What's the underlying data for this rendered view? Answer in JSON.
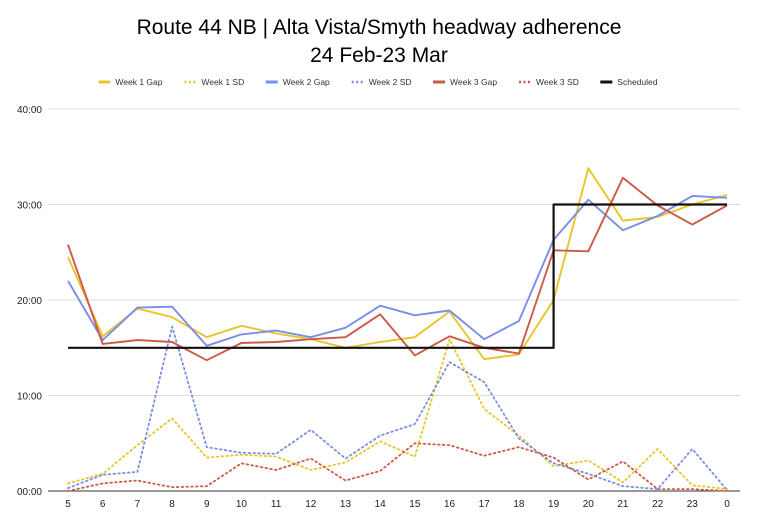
{
  "chart_data": {
    "type": "line",
    "title": "Route 44 NB | Alta Vista/Smyth headway adherence",
    "subtitle": "24 Feb-23 Mar",
    "legend_position": "top",
    "grid": true,
    "categories": [
      "5",
      "6",
      "7",
      "8",
      "9",
      "10",
      "11",
      "12",
      "13",
      "14",
      "15",
      "16",
      "17",
      "18",
      "19",
      "20",
      "21",
      "22",
      "23",
      "0"
    ],
    "y_ticks": [
      "00:00",
      "10:00",
      "20:00",
      "30:00",
      "40:00"
    ],
    "ylim": [
      0,
      40
    ],
    "series": [
      {
        "name": "Week 1 Gap",
        "color": "#e8c52b",
        "dash": false,
        "values": [
          24.5,
          16.2,
          19.1,
          18.2,
          16.1,
          17.3,
          16.5,
          15.9,
          15.0,
          15.6,
          16.1,
          18.8,
          13.8,
          14.3,
          20.0,
          33.8,
          28.3,
          28.7,
          30.0,
          31.0
        ]
      },
      {
        "name": "Week 1 SD",
        "color": "#e8c52b",
        "dash": true,
        "values": [
          0.8,
          1.8,
          4.8,
          7.6,
          3.5,
          3.8,
          3.6,
          2.2,
          3.0,
          5.2,
          3.6,
          15.9,
          8.6,
          5.8,
          2.6,
          3.2,
          0.9,
          4.4,
          0.6,
          0.2
        ]
      },
      {
        "name": "Week 2 Gap",
        "color": "#7a8ee8",
        "dash": false,
        "values": [
          22.0,
          15.8,
          19.2,
          19.3,
          15.2,
          16.4,
          16.8,
          16.1,
          17.1,
          19.4,
          18.4,
          18.9,
          15.9,
          17.8,
          26.3,
          30.5,
          27.3,
          28.8,
          30.9,
          30.7
        ]
      },
      {
        "name": "Week 2 SD",
        "color": "#7a8ee8",
        "dash": true,
        "values": [
          0.3,
          1.7,
          2.0,
          17.2,
          4.6,
          4.0,
          3.9,
          6.4,
          3.4,
          5.8,
          7.0,
          13.5,
          11.4,
          5.5,
          2.9,
          1.8,
          0.5,
          0.2,
          4.4,
          0.1
        ]
      },
      {
        "name": "Week 3 Gap",
        "color": "#cc5a48",
        "dash": false,
        "values": [
          25.8,
          15.4,
          15.8,
          15.6,
          13.7,
          15.5,
          15.6,
          15.9,
          16.1,
          18.5,
          14.2,
          16.2,
          15.0,
          14.4,
          25.2,
          25.1,
          32.8,
          29.9,
          27.9,
          29.9
        ]
      },
      {
        "name": "Week 3 SD",
        "color": "#cc5a48",
        "dash": true,
        "values": [
          0.0,
          0.8,
          1.1,
          0.4,
          0.5,
          2.9,
          2.2,
          3.4,
          1.1,
          2.1,
          5.0,
          4.8,
          3.7,
          4.6,
          3.5,
          1.2,
          3.1,
          0.2,
          0.2,
          0.0
        ]
      },
      {
        "name": "Scheduled",
        "color": "#111111",
        "dash": false,
        "step": true,
        "values": [
          15,
          15,
          15,
          15,
          15,
          15,
          15,
          15,
          15,
          15,
          15,
          15,
          15,
          15,
          30,
          30,
          30,
          30,
          30,
          30
        ]
      }
    ]
  }
}
